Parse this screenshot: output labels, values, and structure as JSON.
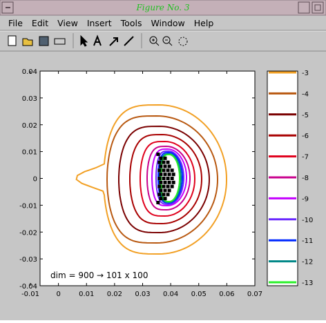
{
  "window": {
    "title": "Figure No. 3",
    "menu": [
      "File",
      "Edit",
      "View",
      "Insert",
      "Tools",
      "Window",
      "Help"
    ]
  },
  "chart_data": {
    "type": "contour",
    "xlim": [
      -0.01,
      0.07
    ],
    "ylim": [
      -0.04,
      0.04
    ],
    "xticks": [
      -0.01,
      0,
      0.01,
      0.02,
      0.03,
      0.04,
      0.05,
      0.06,
      0.07
    ],
    "yticks": [
      -0.04,
      -0.03,
      -0.02,
      -0.01,
      0,
      0.01,
      0.02,
      0.03,
      0.04
    ],
    "levels": [
      -3,
      -4,
      -5,
      -6,
      -7,
      -8,
      -9,
      -10,
      -11,
      -12,
      -13
    ],
    "colors": [
      "#f2a024",
      "#b85810",
      "#7a0000",
      "#a80000",
      "#e0001c",
      "#c8008c",
      "#c400ff",
      "#6a28ff",
      "#0028ff",
      "#008888",
      "#28f028"
    ],
    "annotation": "dim = 900 → 101 x 100",
    "points": {
      "color": "#000000",
      "x": [
        0.0355,
        0.0365,
        0.038,
        0.036,
        0.0375,
        0.039,
        0.0365,
        0.038,
        0.0395,
        0.036,
        0.0375,
        0.039,
        0.0405,
        0.0365,
        0.038,
        0.0395,
        0.041,
        0.036,
        0.0375,
        0.039,
        0.0405,
        0.0365,
        0.038,
        0.0395,
        0.041,
        0.036,
        0.0375,
        0.039,
        0.0405,
        0.0365,
        0.038,
        0.0395,
        0.036,
        0.0375,
        0.039,
        0.0365,
        0.038,
        0.0355
      ],
      "y": [
        0.009,
        0.0075,
        0.0075,
        0.006,
        0.006,
        0.006,
        0.0045,
        0.0045,
        0.0045,
        0.003,
        0.003,
        0.003,
        0.003,
        0.0015,
        0.0015,
        0.0015,
        0.0015,
        0,
        0,
        0,
        0,
        -0.0015,
        -0.0015,
        -0.0015,
        -0.0015,
        -0.003,
        -0.003,
        -0.003,
        -0.003,
        -0.0045,
        -0.0045,
        -0.0045,
        -0.006,
        -0.006,
        -0.006,
        -0.0075,
        -0.0075,
        -0.009
      ]
    }
  }
}
